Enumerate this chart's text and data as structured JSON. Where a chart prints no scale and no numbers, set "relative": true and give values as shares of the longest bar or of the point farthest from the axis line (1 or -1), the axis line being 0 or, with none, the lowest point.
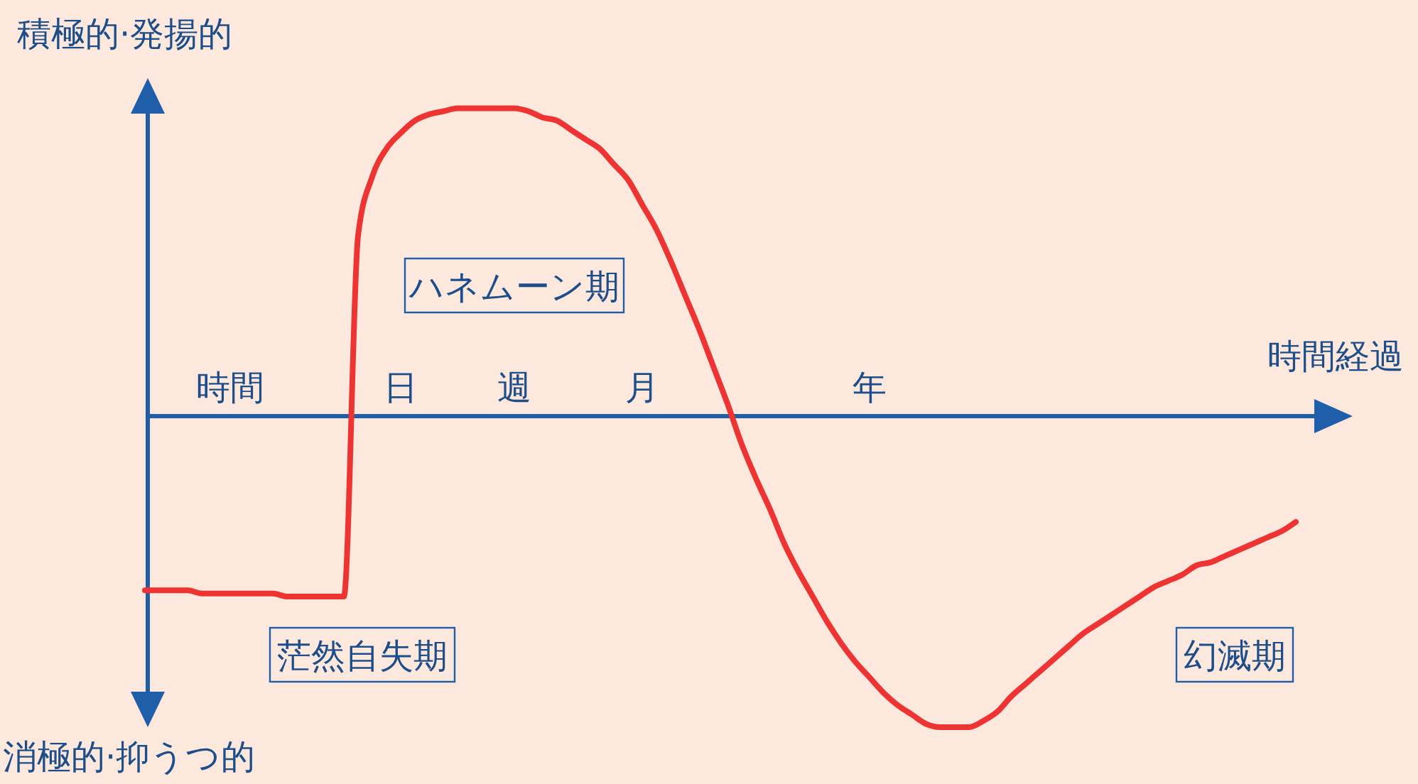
{
  "chart_data": {
    "type": "line",
    "relative": true,
    "ylabel": "積極的·発揚的",
    "xlabel": "時間経過",
    "categories": [
      null,
      null,
      null,
      null,
      null,
      null,
      "時間",
      null,
      null,
      null,
      null,
      null,
      null,
      null,
      null,
      null,
      null,
      null,
      "日",
      null,
      null,
      null,
      null,
      null,
      null,
      null,
      "週",
      null,
      null,
      null,
      null,
      null,
      null,
      null,
      null,
      "月",
      null,
      null,
      null,
      null,
      null,
      null,
      null,
      null,
      null,
      null,
      null,
      null,
      null,
      null,
      null,
      "年",
      null,
      null,
      null,
      null,
      null,
      null,
      null,
      null,
      null,
      null,
      null,
      null,
      null,
      null,
      null,
      null,
      null,
      null,
      null,
      null,
      null,
      null,
      null,
      null,
      null,
      null,
      null,
      null,
      null,
      null
    ],
    "series": [
      {
        "color": "#ee3333",
        "values": [
          -0.56,
          -0.56,
          -0.56,
          -0.56,
          -0.57,
          -0.57,
          -0.57,
          -0.57,
          -0.57,
          -0.57,
          -0.58,
          -0.58,
          -0.58,
          -0.58,
          -0.58,
          0.58,
          0.77,
          0.86,
          0.91,
          0.95,
          0.97,
          0.98,
          0.99,
          0.99,
          0.99,
          0.99,
          0.99,
          0.98,
          0.96,
          0.95,
          0.92,
          0.89,
          0.86,
          0.81,
          0.76,
          0.68,
          0.6,
          0.5,
          0.39,
          0.28,
          0.16,
          0.04,
          -0.09,
          -0.2,
          -0.3,
          -0.41,
          -0.5,
          -0.58,
          -0.66,
          -0.73,
          -0.79,
          -0.84,
          -0.89,
          -0.93,
          -0.96,
          -0.99,
          -1.0,
          -1.0,
          -1.0,
          -0.98,
          -0.95,
          -0.9,
          -0.86,
          -0.82,
          -0.78,
          -0.74,
          -0.7,
          -0.67,
          -0.64,
          -0.61,
          -0.58,
          -0.55,
          -0.53,
          -0.51,
          -0.48,
          -0.47,
          -0.45,
          -0.43,
          -0.41,
          -0.39,
          -0.37,
          -0.34
        ]
      }
    ],
    "annotations": [
      "ハネムーン期",
      "茫然自失期",
      "幻滅期",
      "消極的·抑うつ的"
    ],
    "grid": false,
    "marker": "none",
    "line_style": "solid"
  }
}
